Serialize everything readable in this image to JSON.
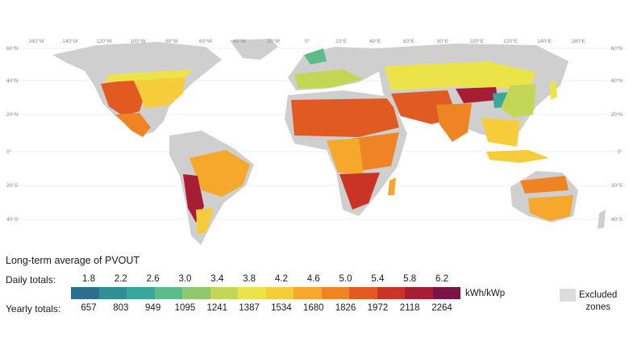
{
  "map": {
    "lon_labels": [
      "160°W",
      "140°W",
      "120°W",
      "100°W",
      "80°W",
      "60°W",
      "40°W",
      "20°W",
      "0°",
      "20°E",
      "40°E",
      "60°E",
      "80°E",
      "100°E",
      "120°E",
      "140°E",
      "160°E"
    ],
    "lat_labels_left": [
      "60°N",
      "40°N",
      "20°N",
      "0°",
      "20°S",
      "40°S"
    ],
    "lat_labels_right": [
      "60°N",
      "40°N",
      "20°N",
      "0°",
      "20°S",
      "40°S"
    ],
    "excluded_color": "#cfcfcf"
  },
  "legend": {
    "title": "Long-term average of PVOUT",
    "daily_label": "Daily totals:",
    "yearly_label": "Yearly totals:",
    "daily_values": [
      "1.8",
      "2.2",
      "2.6",
      "3.0",
      "3.4",
      "3.8",
      "4.2",
      "4.6",
      "5.0",
      "5.4",
      "5.8",
      "6.2"
    ],
    "yearly_values": [
      "657",
      "803",
      "949",
      "1095",
      "1241",
      "1387",
      "1534",
      "1680",
      "1826",
      "1972",
      "2118",
      "2264"
    ],
    "unit": "kWh/kWp",
    "excluded_label": "Excluded zones",
    "colors": [
      "#2c6e8f",
      "#2f8f95",
      "#3aa79a",
      "#5dbb8a",
      "#8ec96d",
      "#c3d655",
      "#ece34a",
      "#f6cc3a",
      "#f5a82c",
      "#ef8425",
      "#e05a22",
      "#c93424",
      "#a81d36",
      "#7a1444"
    ]
  }
}
